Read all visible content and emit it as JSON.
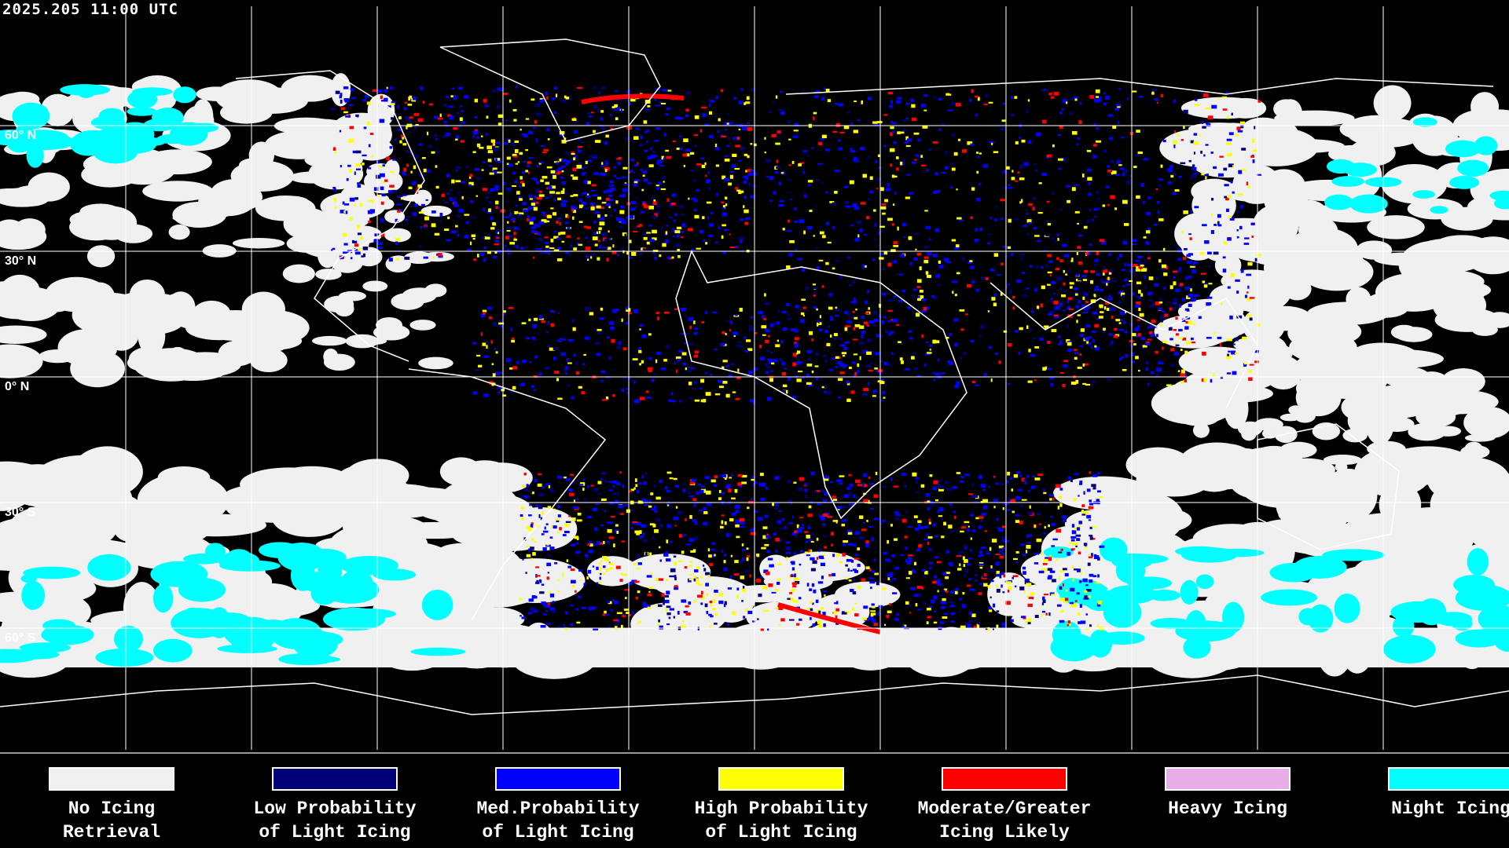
{
  "header": {
    "timestamp": "2025.205 11:00 UTC"
  },
  "map": {
    "lat_labels": [
      "60° N",
      "30° N",
      "0° N",
      "30° S",
      "60° S"
    ],
    "background": "#000000",
    "grid_color": "#ffffff",
    "coastline_color": "#ffffff"
  },
  "legend": {
    "items": [
      {
        "line1": "No Icing",
        "line2": "Retrieval",
        "color": "#f0f0f0"
      },
      {
        "line1": "Low Probability",
        "line2": "of Light Icing",
        "color": "#000078"
      },
      {
        "line1": "Med.Probability",
        "line2": "of Light Icing",
        "color": "#0000ff"
      },
      {
        "line1": "High Probability",
        "line2": "of Light Icing",
        "color": "#ffff00"
      },
      {
        "line1": "Moderate/Greater",
        "line2": "Icing Likely",
        "color": "#ff0000"
      },
      {
        "line1": "Heavy Icing",
        "line2": "",
        "color": "#e8aee8"
      },
      {
        "line1": "Night Icing",
        "line2": "",
        "color": "#00ffff"
      }
    ]
  }
}
